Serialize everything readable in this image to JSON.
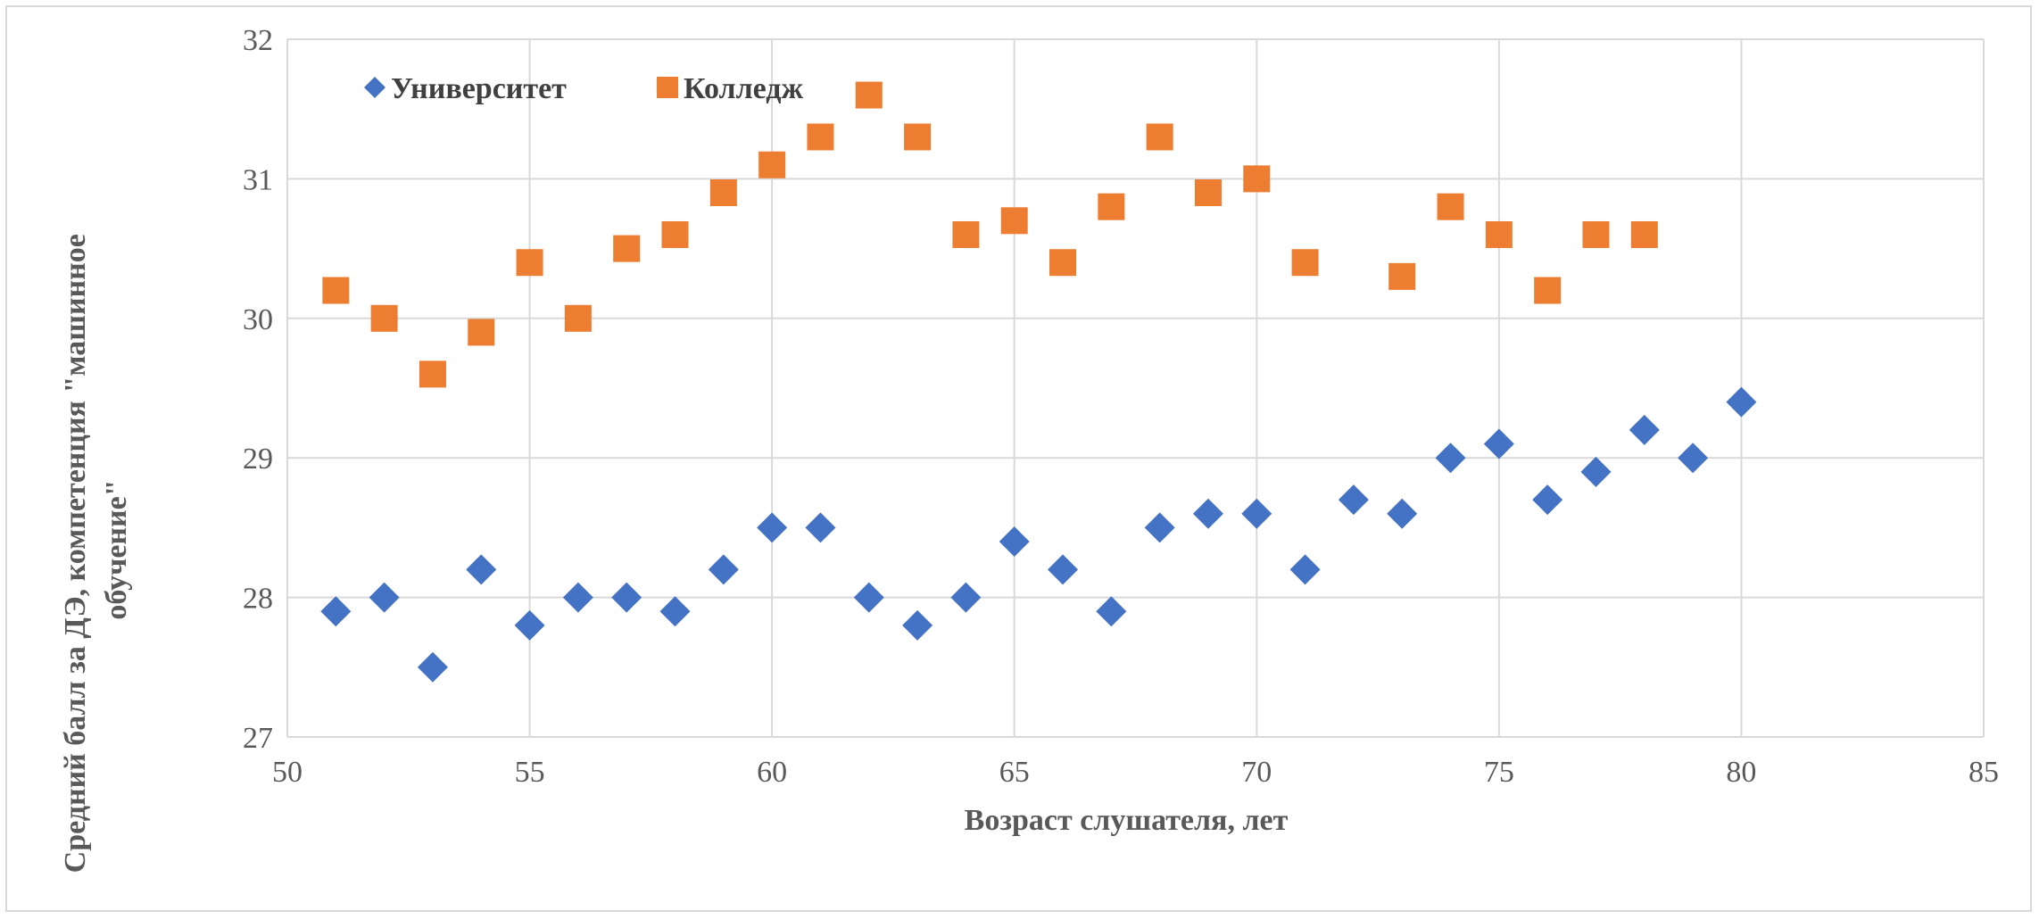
{
  "chart_data": {
    "type": "scatter",
    "xlabel": "Возраст слушателя, лет",
    "ylabel_lines": [
      "Средний балл за ДЭ, компетенция \"машинное",
      "обучение\""
    ],
    "xlim": [
      50,
      85
    ],
    "ylim": [
      27,
      32
    ],
    "x_ticks": [
      "50",
      "55",
      "60",
      "65",
      "70",
      "75",
      "80",
      "85"
    ],
    "y_ticks": [
      "27",
      "28",
      "29",
      "30",
      "31",
      "32"
    ],
    "grid": true,
    "legend_position": "top-left",
    "series": [
      {
        "name": "Университет",
        "marker": "diamond",
        "color": "#4472c4",
        "points": [
          [
            51,
            27.9
          ],
          [
            52,
            28.0
          ],
          [
            53,
            27.5
          ],
          [
            54,
            28.2
          ],
          [
            55,
            27.8
          ],
          [
            56,
            28.0
          ],
          [
            57,
            28.0
          ],
          [
            58,
            27.9
          ],
          [
            59,
            28.2
          ],
          [
            60,
            28.5
          ],
          [
            61,
            28.5
          ],
          [
            62,
            28.0
          ],
          [
            63,
            27.8
          ],
          [
            64,
            28.0
          ],
          [
            65,
            28.4
          ],
          [
            66,
            28.2
          ],
          [
            67,
            27.9
          ],
          [
            68,
            28.5
          ],
          [
            69,
            28.6
          ],
          [
            70,
            28.6
          ],
          [
            71,
            28.2
          ],
          [
            72,
            28.7
          ],
          [
            73,
            28.6
          ],
          [
            74,
            29.0
          ],
          [
            75,
            29.1
          ],
          [
            76,
            28.7
          ],
          [
            77,
            28.9
          ],
          [
            78,
            29.2
          ],
          [
            79,
            29.0
          ],
          [
            80,
            29.4
          ]
        ]
      },
      {
        "name": "Колледж",
        "marker": "square",
        "color": "#ed7d31",
        "points": [
          [
            51,
            30.2
          ],
          [
            52,
            30.0
          ],
          [
            53,
            29.6
          ],
          [
            54,
            29.9
          ],
          [
            55,
            30.4
          ],
          [
            56,
            30.0
          ],
          [
            57,
            30.5
          ],
          [
            58,
            30.6
          ],
          [
            59,
            30.9
          ],
          [
            60,
            31.1
          ],
          [
            61,
            31.3
          ],
          [
            62,
            31.6
          ],
          [
            63,
            31.3
          ],
          [
            64,
            30.6
          ],
          [
            65,
            30.7
          ],
          [
            66,
            30.4
          ],
          [
            67,
            30.8
          ],
          [
            68,
            31.3
          ],
          [
            69,
            30.9
          ],
          [
            70,
            31.0
          ],
          [
            71,
            30.4
          ],
          [
            73,
            30.3
          ],
          [
            74,
            30.8
          ],
          [
            75,
            30.6
          ],
          [
            76,
            30.2
          ],
          [
            77,
            30.6
          ],
          [
            78,
            30.6
          ]
        ]
      }
    ]
  }
}
